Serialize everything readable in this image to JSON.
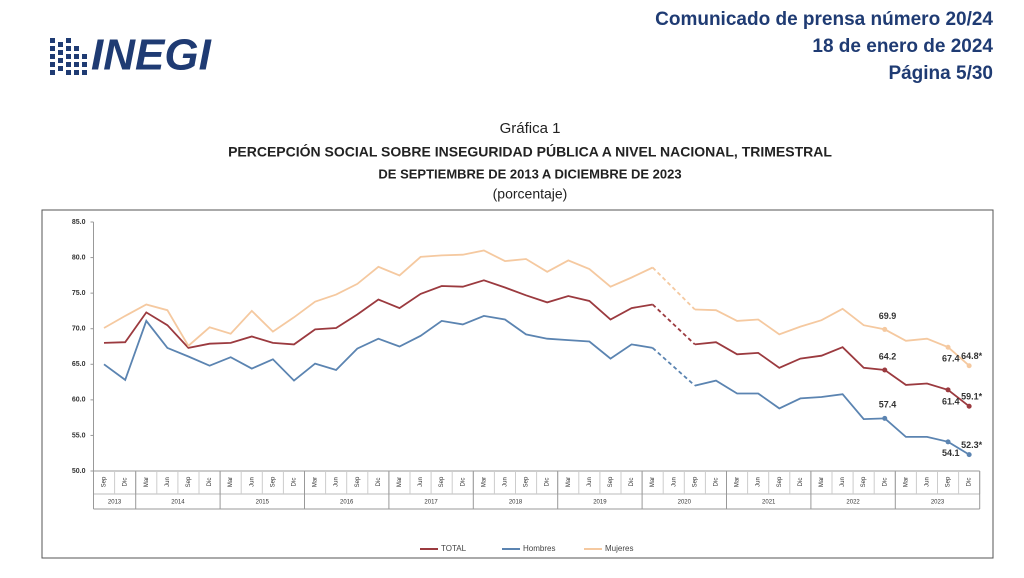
{
  "header": {
    "logo": "INEGI",
    "lines": [
      "Comunicado de prensa número 20/24",
      "18 de enero de 2024",
      "Página 5/30"
    ]
  },
  "chart_data": {
    "type": "line",
    "label": "Gráfica 1",
    "title": "PERCEPCIÓN SOCIAL SOBRE INSEGURIDAD PÚBLICA A NIVEL NACIONAL, TRIMESTRAL",
    "subtitle": "DE SEPTIEMBRE DE 2013 A DICIEMBRE DE 2023",
    "unit": "(porcentaje)",
    "ylim": [
      50,
      85
    ],
    "yticks": [
      {
        "value": 50,
        "label": "50.0"
      },
      {
        "value": 55,
        "label": "55.0"
      },
      {
        "value": 60,
        "label": "60.0"
      },
      {
        "value": 65,
        "label": "65.0"
      },
      {
        "value": 70,
        "label": "70.0"
      },
      {
        "value": 75,
        "label": "75.0"
      },
      {
        "value": 80,
        "label": "80.0"
      },
      {
        "value": 85,
        "label": "85.0"
      }
    ],
    "categories": [
      {
        "month": "Sep",
        "year": "2013"
      },
      {
        "month": "Dic",
        "year": "2013"
      },
      {
        "month": "Mar",
        "year": "2014"
      },
      {
        "month": "Jun",
        "year": "2014"
      },
      {
        "month": "Sep",
        "year": "2014"
      },
      {
        "month": "Dic",
        "year": "2014"
      },
      {
        "month": "Mar",
        "year": "2015"
      },
      {
        "month": "Jun",
        "year": "2015"
      },
      {
        "month": "Sep",
        "year": "2015"
      },
      {
        "month": "Dic",
        "year": "2015"
      },
      {
        "month": "Mar",
        "year": "2016"
      },
      {
        "month": "Jun",
        "year": "2016"
      },
      {
        "month": "Sep",
        "year": "2016"
      },
      {
        "month": "Dic",
        "year": "2016"
      },
      {
        "month": "Mar",
        "year": "2017"
      },
      {
        "month": "Jun",
        "year": "2017"
      },
      {
        "month": "Sep",
        "year": "2017"
      },
      {
        "month": "Dic",
        "year": "2017"
      },
      {
        "month": "Mar",
        "year": "2018"
      },
      {
        "month": "Jun",
        "year": "2018"
      },
      {
        "month": "Sep",
        "year": "2018"
      },
      {
        "month": "Dic",
        "year": "2018"
      },
      {
        "month": "Mar",
        "year": "2019"
      },
      {
        "month": "Jun",
        "year": "2019"
      },
      {
        "month": "Sep",
        "year": "2019"
      },
      {
        "month": "Dic",
        "year": "2019"
      },
      {
        "month": "Mar",
        "year": "2020"
      },
      {
        "month": "Jun",
        "year": "2020"
      },
      {
        "month": "Sep",
        "year": "2020"
      },
      {
        "month": "Dic",
        "year": "2020"
      },
      {
        "month": "Mar",
        "year": "2021"
      },
      {
        "month": "Jun",
        "year": "2021"
      },
      {
        "month": "Sep",
        "year": "2021"
      },
      {
        "month": "Dic",
        "year": "2021"
      },
      {
        "month": "Mar",
        "year": "2022"
      },
      {
        "month": "Jun",
        "year": "2022"
      },
      {
        "month": "Sep",
        "year": "2022"
      },
      {
        "month": "Dic",
        "year": "2022"
      },
      {
        "month": "Mar",
        "year": "2023"
      },
      {
        "month": "Jun",
        "year": "2023"
      },
      {
        "month": "Sep",
        "year": "2023"
      },
      {
        "month": "Dic",
        "year": "2023"
      }
    ],
    "series": [
      {
        "name": "TOTAL",
        "color": "#9b3a3f",
        "values": [
          68.0,
          68.1,
          72.3,
          70.5,
          67.3,
          67.9,
          68.0,
          68.9,
          68.0,
          67.8,
          69.9,
          70.1,
          72.0,
          74.1,
          72.9,
          74.9,
          76.0,
          75.9,
          76.8,
          75.8,
          74.7,
          73.7,
          74.6,
          73.9,
          71.3,
          72.9,
          73.4,
          null,
          67.8,
          68.1,
          66.4,
          66.6,
          64.5,
          65.8,
          66.2,
          67.4,
          64.5,
          64.2,
          62.1,
          62.3,
          61.4,
          59.1
        ],
        "value_labels": [
          null,
          null,
          null,
          null,
          null,
          null,
          null,
          null,
          null,
          null,
          null,
          null,
          null,
          null,
          null,
          null,
          null,
          null,
          null,
          null,
          null,
          null,
          null,
          null,
          null,
          null,
          null,
          null,
          null,
          null,
          null,
          null,
          null,
          null,
          null,
          null,
          null,
          "64.2",
          null,
          null,
          "61.4",
          "59.1*"
        ]
      },
      {
        "name": "Hombres",
        "color": "#5b84b1",
        "values": [
          65.0,
          62.8,
          71.1,
          67.3,
          66.1,
          64.8,
          66.0,
          64.4,
          65.7,
          62.7,
          65.1,
          64.2,
          67.2,
          68.6,
          67.5,
          69.0,
          71.1,
          70.6,
          71.8,
          71.3,
          69.2,
          68.6,
          68.4,
          68.2,
          65.8,
          67.8,
          67.3,
          null,
          62.0,
          62.7,
          60.9,
          60.9,
          58.8,
          60.2,
          60.4,
          60.8,
          57.3,
          57.4,
          54.8,
          54.8,
          54.1,
          52.3
        ],
        "value_labels": [
          null,
          null,
          null,
          null,
          null,
          null,
          null,
          null,
          null,
          null,
          null,
          null,
          null,
          null,
          null,
          null,
          null,
          null,
          null,
          null,
          null,
          null,
          null,
          null,
          null,
          null,
          null,
          null,
          null,
          null,
          null,
          null,
          null,
          null,
          null,
          null,
          null,
          "57.4",
          null,
          null,
          "54.1",
          "52.3*"
        ]
      },
      {
        "name": "Mujeres",
        "color": "#f5c9a0",
        "values": [
          70.1,
          71.8,
          73.4,
          72.6,
          67.6,
          70.2,
          69.3,
          72.5,
          69.6,
          71.6,
          73.8,
          74.8,
          76.3,
          78.7,
          77.5,
          80.1,
          80.3,
          80.4,
          81.0,
          79.5,
          79.8,
          78.0,
          79.6,
          78.4,
          75.9,
          77.2,
          78.6,
          null,
          72.7,
          72.6,
          71.1,
          71.3,
          69.2,
          70.3,
          71.2,
          72.8,
          70.5,
          69.9,
          68.3,
          68.6,
          67.4,
          64.8
        ],
        "value_labels": [
          null,
          null,
          null,
          null,
          null,
          null,
          null,
          null,
          null,
          null,
          null,
          null,
          null,
          null,
          null,
          null,
          null,
          null,
          null,
          null,
          null,
          null,
          null,
          null,
          null,
          null,
          null,
          null,
          null,
          null,
          null,
          null,
          null,
          null,
          null,
          null,
          null,
          "69.9",
          null,
          null,
          "67.4",
          "64.8*"
        ]
      }
    ],
    "legend": "bottom"
  }
}
